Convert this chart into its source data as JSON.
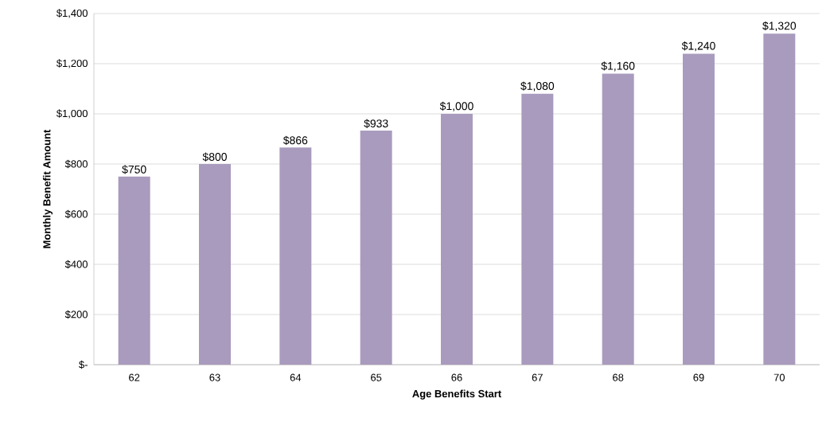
{
  "chart_data": {
    "type": "bar",
    "xlabel": "Age Benefits Start",
    "ylabel": "Monthly Benefit Amount",
    "categories": [
      "62",
      "63",
      "64",
      "65",
      "66",
      "67",
      "68",
      "69",
      "70"
    ],
    "values": [
      750,
      800,
      866,
      933,
      1000,
      1080,
      1160,
      1240,
      1320
    ],
    "value_labels": [
      "$750",
      "$800",
      "$866",
      "$933",
      "$1,000",
      "$1,080",
      "$1,160",
      "$1,240",
      "$1,320"
    ],
    "color": "#a99bbd",
    "ylim": [
      0,
      1400
    ],
    "yticks": [
      {
        "value": 0,
        "label": "$-"
      },
      {
        "value": 200,
        "label": "$200"
      },
      {
        "value": 400,
        "label": "$400"
      },
      {
        "value": 600,
        "label": "$600"
      },
      {
        "value": 800,
        "label": "$800"
      },
      {
        "value": 1000,
        "label": "$1,000"
      },
      {
        "value": 1200,
        "label": "$1,200"
      },
      {
        "value": 1400,
        "label": "$1,400"
      }
    ],
    "grid": "y"
  }
}
